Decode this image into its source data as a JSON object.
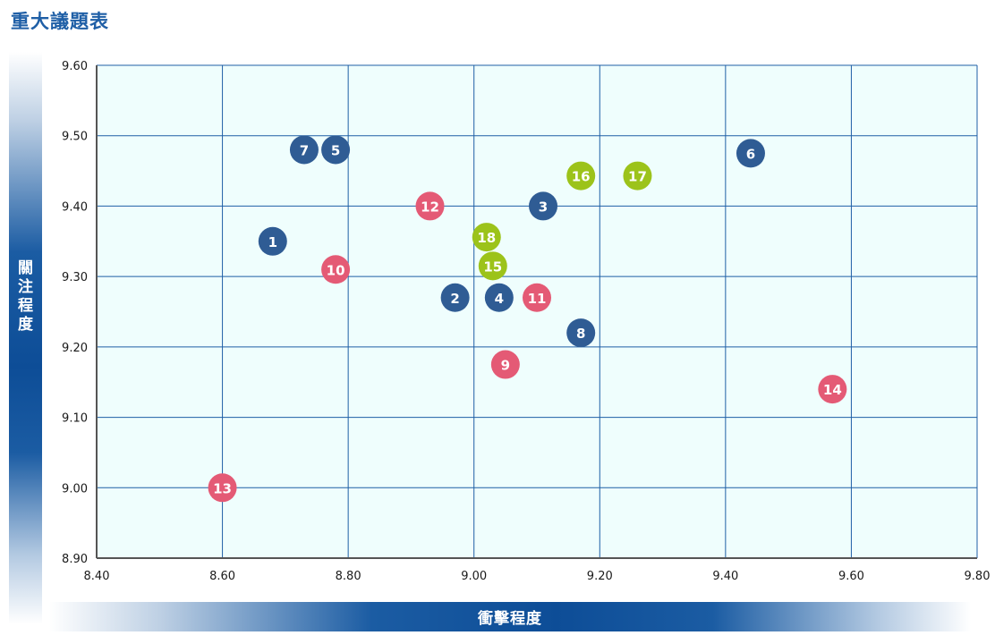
{
  "title": "重大議題表",
  "colors": {
    "navy": "#2f5c94",
    "pink": "#e45a75",
    "lime": "#9cc31a",
    "plot_bg": "#effefd",
    "grid": "#1f5fa6",
    "accent": "#1f5fa6"
  },
  "chart_data": {
    "type": "scatter",
    "xlabel": "衝擊程度",
    "ylabel": "關注程度",
    "xlim": [
      8.4,
      9.8
    ],
    "ylim": [
      8.9,
      9.6
    ],
    "x_ticks": [
      "8.40",
      "8.60",
      "8.80",
      "9.00",
      "9.20",
      "9.40",
      "9.60",
      "9.80"
    ],
    "y_ticks": [
      "9.60",
      "9.50",
      "9.40",
      "9.30",
      "9.20",
      "9.10",
      "9.00",
      "8.90"
    ],
    "grid": true,
    "points": [
      {
        "label": "1",
        "x": 8.68,
        "y": 9.35,
        "color": "navy"
      },
      {
        "label": "2",
        "x": 8.97,
        "y": 9.27,
        "color": "navy"
      },
      {
        "label": "3",
        "x": 9.11,
        "y": 9.4,
        "color": "navy"
      },
      {
        "label": "4",
        "x": 9.04,
        "y": 9.27,
        "color": "navy"
      },
      {
        "label": "5",
        "x": 8.78,
        "y": 9.48,
        "color": "navy"
      },
      {
        "label": "6",
        "x": 9.44,
        "y": 9.475,
        "color": "navy"
      },
      {
        "label": "7",
        "x": 8.73,
        "y": 9.48,
        "color": "navy"
      },
      {
        "label": "8",
        "x": 9.17,
        "y": 9.22,
        "color": "navy"
      },
      {
        "label": "9",
        "x": 9.05,
        "y": 9.175,
        "color": "pink"
      },
      {
        "label": "10",
        "x": 8.78,
        "y": 9.31,
        "color": "pink"
      },
      {
        "label": "11",
        "x": 9.1,
        "y": 9.27,
        "color": "pink"
      },
      {
        "label": "12",
        "x": 8.93,
        "y": 9.4,
        "color": "pink"
      },
      {
        "label": "13",
        "x": 8.6,
        "y": 9.0,
        "color": "pink"
      },
      {
        "label": "14",
        "x": 9.57,
        "y": 9.14,
        "color": "pink"
      },
      {
        "label": "15",
        "x": 9.03,
        "y": 9.315,
        "color": "lime"
      },
      {
        "label": "16",
        "x": 9.17,
        "y": 9.443,
        "color": "lime"
      },
      {
        "label": "17",
        "x": 9.26,
        "y": 9.443,
        "color": "lime"
      },
      {
        "label": "18",
        "x": 9.02,
        "y": 9.356,
        "color": "lime"
      }
    ]
  }
}
